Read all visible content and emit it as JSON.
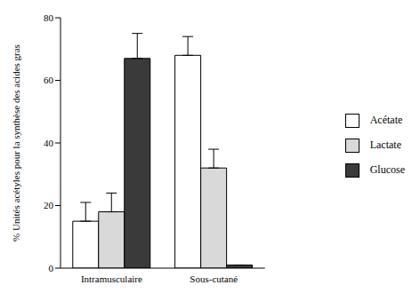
{
  "chart_data": {
    "type": "bar",
    "y_label": "% Unités acétyles pour la synthèse des acides gras",
    "categories": [
      "Intramusculaire",
      "Sous-cutané"
    ],
    "series": [
      {
        "name": "Acétate",
        "color": "#ffffff",
        "values": [
          15,
          68
        ],
        "errors": [
          6,
          6
        ]
      },
      {
        "name": "Lactate",
        "color": "#d9d9d9",
        "values": [
          18,
          32
        ],
        "errors": [
          6,
          6
        ]
      },
      {
        "name": "Glucose",
        "color": "#3a3a3a",
        "values": [
          67,
          1
        ],
        "errors": [
          8,
          0
        ]
      }
    ],
    "ylim": [
      0,
      80
    ],
    "yticks": [
      0,
      20,
      40,
      60,
      80
    ],
    "grid": false,
    "legend": "right"
  }
}
